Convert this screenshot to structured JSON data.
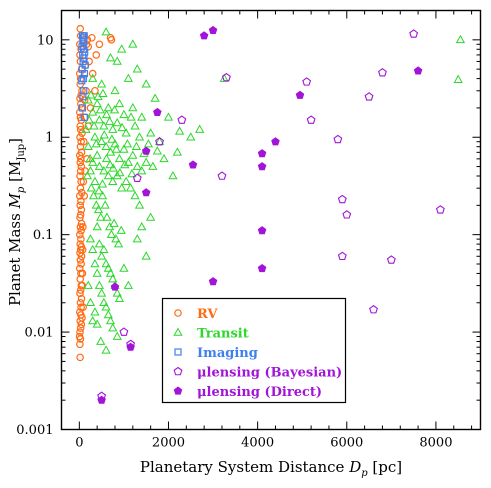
{
  "chart_data": {
    "type": "scatter",
    "xlabel_main": "Planetary System Distance ",
    "xlabel_sym": "D",
    "xlabel_sub": "p",
    "xlabel_unit": " [pc]",
    "ylabel_main": "Planet Mass ",
    "ylabel_sym": "M",
    "ylabel_sub": "p",
    "ylabel_unit_open": " [M",
    "ylabel_unit_sub": "Jup",
    "ylabel_unit_close": "]",
    "xlim": [
      -400,
      9000
    ],
    "ylim": [
      0.001,
      20
    ],
    "yscale": "log",
    "x_ticks": [
      0,
      2000,
      4000,
      6000,
      8000
    ],
    "x_tick_labels": [
      "0",
      "2000",
      "4000",
      "6000",
      "8000"
    ],
    "y_ticks": [
      0.001,
      0.01,
      0.1,
      1,
      10
    ],
    "y_tick_labels": [
      "0.001",
      "0.01",
      "0.1",
      "1",
      "10"
    ],
    "legend_position": "lower-center",
    "series": [
      {
        "name": "RV",
        "marker": "circle-open",
        "color": "#ff6a13",
        "points": [
          [
            20,
            13
          ],
          [
            30,
            11
          ],
          [
            10,
            9
          ],
          [
            40,
            8
          ],
          [
            15,
            7
          ],
          [
            25,
            6
          ],
          [
            50,
            5
          ],
          [
            10,
            4.5
          ],
          [
            30,
            4
          ],
          [
            20,
            3.5
          ],
          [
            60,
            3
          ],
          [
            40,
            2.7
          ],
          [
            15,
            2.5
          ],
          [
            35,
            2.2
          ],
          [
            50,
            2
          ],
          [
            10,
            1.8
          ],
          [
            25,
            1.6
          ],
          [
            45,
            1.5
          ],
          [
            20,
            1.3
          ],
          [
            30,
            1.2
          ],
          [
            60,
            1.1
          ],
          [
            15,
            1
          ],
          [
            40,
            0.9
          ],
          [
            25,
            0.8
          ],
          [
            50,
            0.7
          ],
          [
            10,
            0.65
          ],
          [
            35,
            0.6
          ],
          [
            20,
            0.55
          ],
          [
            45,
            0.5
          ],
          [
            30,
            0.45
          ],
          [
            15,
            0.4
          ],
          [
            40,
            0.35
          ],
          [
            25,
            0.3
          ],
          [
            55,
            0.27
          ],
          [
            10,
            0.25
          ],
          [
            35,
            0.22
          ],
          [
            20,
            0.2
          ],
          [
            45,
            0.18
          ],
          [
            30,
            0.16
          ],
          [
            15,
            0.15
          ],
          [
            50,
            0.13
          ],
          [
            25,
            0.12
          ],
          [
            40,
            0.11
          ],
          [
            10,
            0.1
          ],
          [
            35,
            0.09
          ],
          [
            20,
            0.08
          ],
          [
            45,
            0.075
          ],
          [
            30,
            0.07
          ],
          [
            15,
            0.065
          ],
          [
            50,
            0.06
          ],
          [
            25,
            0.055
          ],
          [
            40,
            0.05
          ],
          [
            10,
            0.045
          ],
          [
            35,
            0.04
          ],
          [
            20,
            0.035
          ],
          [
            45,
            0.03
          ],
          [
            30,
            0.027
          ],
          [
            15,
            0.025
          ],
          [
            50,
            0.022
          ],
          [
            25,
            0.02
          ],
          [
            40,
            0.018
          ],
          [
            10,
            0.016
          ],
          [
            35,
            0.015
          ],
          [
            20,
            0.013
          ],
          [
            45,
            0.012
          ],
          [
            30,
            0.011
          ],
          [
            15,
            0.01
          ],
          [
            5,
            0.009
          ],
          [
            25,
            0.0085
          ],
          [
            12,
            0.0075
          ],
          [
            18,
            0.0055
          ],
          [
            60,
            0.014
          ],
          [
            70,
            0.04
          ],
          [
            80,
            0.12
          ],
          [
            90,
            0.35
          ],
          [
            100,
            0.9
          ],
          [
            120,
            2.4
          ],
          [
            140,
            5.5
          ],
          [
            160,
            9
          ],
          [
            100,
            11
          ],
          [
            180,
            10
          ],
          [
            200,
            8.5
          ],
          [
            150,
            3
          ],
          [
            220,
            6
          ],
          [
            130,
            1.6
          ],
          [
            170,
            0.6
          ],
          [
            110,
            0.25
          ],
          [
            75,
            0.07
          ],
          [
            65,
            0.03
          ],
          [
            85,
            0.018
          ],
          [
            280,
            10.5
          ],
          [
            700,
            10.5
          ],
          [
            720,
            10
          ],
          [
            450,
            9
          ],
          [
            380,
            7
          ],
          [
            300,
            4.5
          ],
          [
            350,
            3
          ],
          [
            250,
            2
          ],
          [
            200,
            1.3
          ],
          [
            130,
            0.45
          ]
        ]
      },
      {
        "name": "Transit",
        "marker": "triangle-open",
        "color": "#2bd82b",
        "points": [
          [
            8550,
            10
          ],
          [
            8500,
            3.9
          ],
          [
            3250,
            4
          ],
          [
            1200,
            9
          ],
          [
            1300,
            5
          ],
          [
            850,
            6
          ],
          [
            950,
            8
          ],
          [
            600,
            12
          ],
          [
            700,
            6.5
          ],
          [
            1100,
            4
          ],
          [
            500,
            3.5
          ],
          [
            800,
            3
          ],
          [
            1500,
            3.5
          ],
          [
            1700,
            2.5
          ],
          [
            400,
            2.2
          ],
          [
            650,
            2
          ],
          [
            900,
            2.2
          ],
          [
            1000,
            1.7
          ],
          [
            1200,
            2
          ],
          [
            1400,
            1.6
          ],
          [
            300,
            1.8
          ],
          [
            450,
            1.5
          ],
          [
            550,
            1.3
          ],
          [
            750,
            1.2
          ],
          [
            850,
            1.4
          ],
          [
            1050,
            1.1
          ],
          [
            1250,
            1.3
          ],
          [
            1350,
            1
          ],
          [
            1600,
            1.1
          ],
          [
            1800,
            0.9
          ],
          [
            2000,
            1.6
          ],
          [
            2500,
            1
          ],
          [
            2200,
            0.7
          ],
          [
            2700,
            1.2
          ],
          [
            350,
            1
          ],
          [
            500,
            0.9
          ],
          [
            600,
            0.8
          ],
          [
            700,
            0.7
          ],
          [
            800,
            0.85
          ],
          [
            900,
            0.6
          ],
          [
            1000,
            0.75
          ],
          [
            1100,
            0.55
          ],
          [
            1200,
            0.65
          ],
          [
            1300,
            0.5
          ],
          [
            1400,
            0.45
          ],
          [
            1500,
            0.55
          ],
          [
            1650,
            0.5
          ],
          [
            1900,
            0.6
          ],
          [
            2100,
            0.4
          ],
          [
            400,
            0.65
          ],
          [
            450,
            0.5
          ],
          [
            550,
            0.45
          ],
          [
            650,
            0.4
          ],
          [
            750,
            0.35
          ],
          [
            850,
            0.4
          ],
          [
            950,
            0.3
          ],
          [
            1050,
            0.35
          ],
          [
            1150,
            0.3
          ],
          [
            1250,
            0.25
          ],
          [
            1350,
            0.2
          ],
          [
            300,
            0.55
          ],
          [
            350,
            0.35
          ],
          [
            250,
            0.45
          ],
          [
            200,
            0.8
          ],
          [
            150,
            1.2
          ],
          [
            220,
            1.5
          ],
          [
            180,
            0.4
          ],
          [
            270,
            0.3
          ],
          [
            320,
            0.25
          ],
          [
            380,
            0.2
          ],
          [
            430,
            0.18
          ],
          [
            480,
            0.15
          ],
          [
            520,
            0.25
          ],
          [
            580,
            0.2
          ],
          [
            620,
            0.15
          ],
          [
            680,
            0.12
          ],
          [
            720,
            0.1
          ],
          [
            780,
            0.13
          ],
          [
            820,
            0.09
          ],
          [
            880,
            0.08
          ],
          [
            940,
            0.11
          ],
          [
            1600,
            0.15
          ],
          [
            1400,
            0.12
          ],
          [
            1300,
            0.09
          ],
          [
            400,
            0.12
          ],
          [
            450,
            0.08
          ],
          [
            500,
            0.06
          ],
          [
            550,
            0.07
          ],
          [
            600,
            0.05
          ],
          [
            650,
            0.045
          ],
          [
            700,
            0.04
          ],
          [
            750,
            0.035
          ],
          [
            800,
            0.03
          ],
          [
            850,
            0.025
          ],
          [
            250,
            0.09
          ],
          [
            300,
            0.07
          ],
          [
            350,
            0.05
          ],
          [
            400,
            0.04
          ],
          [
            450,
            0.03
          ],
          [
            500,
            0.025
          ],
          [
            550,
            0.02
          ],
          [
            600,
            0.018
          ],
          [
            650,
            0.015
          ],
          [
            700,
            0.013
          ],
          [
            750,
            0.011
          ],
          [
            300,
            0.013
          ],
          [
            400,
            0.012
          ],
          [
            350,
            0.016
          ],
          [
            250,
            0.02
          ],
          [
            200,
            0.03
          ],
          [
            480,
            0.008
          ],
          [
            600,
            0.0065
          ],
          [
            850,
            0.009
          ],
          [
            1100,
            0.03
          ],
          [
            900,
            0.022
          ],
          [
            1000,
            0.045
          ],
          [
            1500,
            0.06
          ],
          [
            300,
            4
          ],
          [
            200,
            2.4
          ],
          [
            260,
            2.7
          ],
          [
            330,
            1.3
          ],
          [
            420,
            2.6
          ],
          [
            470,
            1.9
          ],
          [
            530,
            2.8
          ],
          [
            560,
            1.05
          ],
          [
            610,
            1.7
          ],
          [
            680,
            1.45
          ],
          [
            730,
            0.95
          ],
          [
            790,
            1.9
          ],
          [
            830,
            0.75
          ],
          [
            960,
            1.25
          ],
          [
            1080,
            0.85
          ],
          [
            1160,
            1.6
          ],
          [
            1280,
            0.8
          ],
          [
            1450,
            0.68
          ],
          [
            1550,
            0.85
          ],
          [
            1750,
            0.72
          ],
          [
            2250,
            1.15
          ],
          [
            440,
            0.28
          ],
          [
            520,
            0.33
          ],
          [
            610,
            0.6
          ],
          [
            690,
            0.52
          ],
          [
            760,
            0.48
          ],
          [
            910,
            0.43
          ],
          [
            1020,
            0.52
          ],
          [
            1180,
            0.42
          ],
          [
            380,
            0.85
          ],
          [
            240,
            0.6
          ]
        ]
      },
      {
        "name": "Imaging",
        "marker": "square-open",
        "color": "#3f7ff0",
        "points": [
          [
            70,
            11
          ],
          [
            80,
            10
          ],
          [
            90,
            10.5
          ],
          [
            100,
            9.5
          ],
          [
            110,
            11
          ],
          [
            60,
            8.5
          ],
          [
            95,
            8
          ],
          [
            120,
            7.5
          ],
          [
            75,
            7
          ],
          [
            105,
            6.5
          ],
          [
            85,
            6
          ],
          [
            130,
            5.5
          ],
          [
            65,
            5
          ],
          [
            115,
            4.5
          ],
          [
            90,
            4
          ],
          [
            55,
            3.8
          ],
          [
            100,
            3
          ],
          [
            80,
            2.6
          ],
          [
            70,
            2
          ],
          [
            110,
            1.6
          ]
        ]
      },
      {
        "name": "μlensing (Bayesian)",
        "marker": "pentagon-open",
        "color": "#a214d8",
        "points": [
          [
            7500,
            11.5
          ],
          [
            6800,
            4.6
          ],
          [
            5100,
            3.7
          ],
          [
            6500,
            2.6
          ],
          [
            5200,
            1.5
          ],
          [
            5800,
            0.95
          ],
          [
            3300,
            4.1
          ],
          [
            2300,
            1.5
          ],
          [
            5900,
            0.23
          ],
          [
            6000,
            0.16
          ],
          [
            8100,
            0.18
          ],
          [
            5900,
            0.06
          ],
          [
            7000,
            0.055
          ],
          [
            6600,
            0.017
          ],
          [
            1300,
            0.38
          ],
          [
            1000,
            0.01
          ],
          [
            1150,
            0.0075
          ],
          [
            500,
            0.0022
          ],
          [
            1800,
            0.9
          ],
          [
            3200,
            0.4
          ]
        ]
      },
      {
        "name": "μlensing (Direct)",
        "marker": "pentagon-filled",
        "color": "#a214d8",
        "points": [
          [
            3000,
            12.5
          ],
          [
            2800,
            11
          ],
          [
            7600,
            4.8
          ],
          [
            4950,
            2.7
          ],
          [
            1750,
            1.8
          ],
          [
            4400,
            0.9
          ],
          [
            1500,
            0.72
          ],
          [
            4100,
            0.68
          ],
          [
            4100,
            0.5
          ],
          [
            2550,
            0.52
          ],
          [
            1500,
            0.27
          ],
          [
            4100,
            0.11
          ],
          [
            4100,
            0.045
          ],
          [
            3000,
            0.033
          ],
          [
            800,
            0.029
          ],
          [
            1150,
            0.007
          ],
          [
            500,
            0.002
          ]
        ]
      }
    ]
  }
}
